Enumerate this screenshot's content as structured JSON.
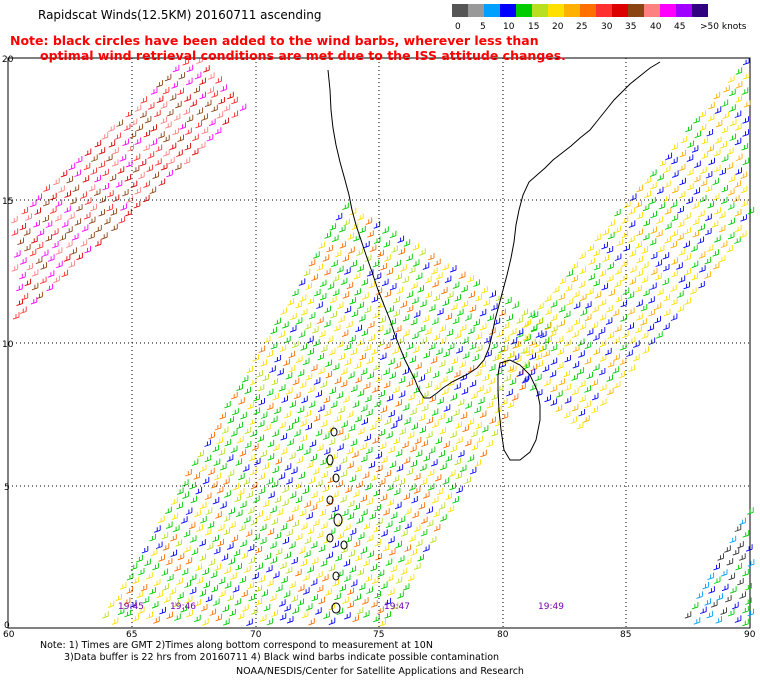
{
  "title": "Rapidscat Winds(12.5KM) 20160711 ascending",
  "note": {
    "line1": "Note: black circles have been added to the wind barbs, wherever less than",
    "line2": "optimal wind retrieval conditions are met due to the ISS attitude changes."
  },
  "scale": {
    "colors": [
      "#555555",
      "#999999",
      "#00a0ff",
      "#0000ff",
      "#00cc00",
      "#b8e020",
      "#ffe000",
      "#ffb000",
      "#ff7000",
      "#ff3030",
      "#dd0000",
      "#8b4513",
      "#ff8080",
      "#ff00ff",
      "#a000ff",
      "#300080"
    ],
    "labels": [
      "0",
      "5",
      "10",
      "15",
      "20",
      "25",
      "30",
      "35",
      "40",
      "45",
      ">50 knots"
    ]
  },
  "map": {
    "lat_labels": [
      "20",
      "15",
      "10",
      "5",
      "0"
    ],
    "lon_labels": [
      "60",
      "65",
      "70",
      "75",
      "80",
      "85",
      "90"
    ],
    "time_labels": [
      "19:45",
      "19:46",
      "19:47",
      "19:49"
    ]
  },
  "footer": {
    "line1": "Note: 1) Times are GMT 2)Times along bottom correspond to measurement at 10N",
    "line2": "3)Data buffer is 22 hrs from 20160711 4) Black wind barbs indicate possible contamination",
    "line3": "NOAA/NESDIS/Center for Satellite Applications and Research"
  }
}
